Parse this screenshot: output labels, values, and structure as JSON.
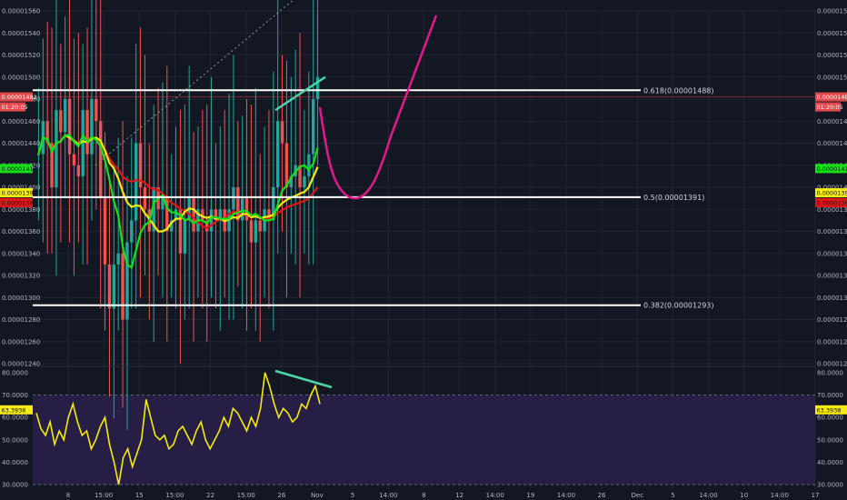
{
  "colors": {
    "background": "#131722",
    "grid": "#1f2433",
    "candle_up": "#26a69a",
    "candle_down": "#ef5350",
    "ma_green": "#16e016",
    "ma_yellow": "#f5ea12",
    "ma_red": "#e01515",
    "trendline": "#4dd6a8",
    "projection": "#e0198c",
    "fib_line": "#ffffff",
    "rsi_line": "#f5ea12",
    "rsi_band": "#2a1f4a",
    "price_badge": "#e0484b",
    "green_badge": "#16e016",
    "yellow_badge": "#f5ea12",
    "red_badge": "#e01515"
  },
  "chart_data": [
    {
      "type": "candlestick",
      "name": "price-pane",
      "y_axis": {
        "min": 1.24e-05,
        "max": 1.56e-05,
        "ticks": [
          "0.00001560",
          "0.00001540",
          "0.00001520",
          "0.00001500",
          "0.00001480",
          "0.00001460",
          "0.00001440",
          "0.00001420",
          "0.00001400",
          "0.00001380",
          "0.00001360",
          "0.00001340",
          "0.00001320",
          "0.00001300",
          "0.00001280",
          "0.00001260",
          "0.00001240"
        ]
      },
      "x_ticks": [
        "8",
        "15:00",
        "15",
        "15:00",
        "22",
        "15:00",
        "26",
        "Nov",
        "5",
        "14:00",
        "8",
        "12",
        "14:00",
        "19",
        "14:00",
        "26",
        "Dec",
        "5",
        "14:00",
        "10",
        "14:00",
        "17"
      ],
      "candles_close_profile": [
        1.43e-05,
        1.46e-05,
        1.44e-05,
        1.4e-05,
        1.47e-05,
        1.45e-05,
        1.48e-05,
        1.43e-05,
        1.42e-05,
        1.41e-05,
        1.47e-05,
        1.43e-05,
        1.48e-05,
        1.46e-05,
        1.39e-05,
        1.33e-05,
        1.29e-05,
        1.33e-05,
        1.34e-05,
        1.28e-05,
        1.35e-05,
        1.37e-05,
        1.44e-05,
        1.4e-05,
        1.38e-05,
        1.36e-05,
        1.4e-05,
        1.38e-05,
        1.39e-05,
        1.36e-05,
        1.37e-05,
        1.38e-05,
        1.34e-05,
        1.37e-05,
        1.39e-05,
        1.36e-05,
        1.38e-05,
        1.37e-05,
        1.36e-05,
        1.38e-05,
        1.37e-05,
        1.38e-05,
        1.36e-05,
        1.38e-05,
        1.4e-05,
        1.37e-05,
        1.39e-05,
        1.37e-05,
        1.35e-05,
        1.37e-05,
        1.36e-05,
        1.38e-05,
        1.37e-05,
        1.4e-05,
        1.46e-05,
        1.44e-05,
        1.4e-05,
        1.41e-05,
        1.42e-05,
        1.4e-05,
        1.41e-05,
        1.43e-05,
        1.48e-05,
        1.5e-05
      ],
      "fib_levels": [
        {
          "label": "0.618(0.00001488)",
          "value": 1.488e-05
        },
        {
          "label": "0.5(0.00001391)",
          "value": 1.391e-05
        },
        {
          "label": "0.382(0.00001293)",
          "value": 1.293e-05
        }
      ],
      "current_price_badge": "0.00001482",
      "countdown_badge": "01:20:05",
      "ma_badges": {
        "green": "0.00001417",
        "yellow": "0.00001395",
        "red": "0.00001386"
      }
    },
    {
      "type": "line",
      "name": "rsi-pane",
      "y_axis": {
        "min": 28,
        "max": 82,
        "ticks": [
          "80.0000",
          "70.0000",
          "60.0000",
          "50.0000",
          "40.0000",
          "30.0000"
        ],
        "band": [
          30,
          70
        ]
      },
      "rsi_values": [
        62,
        55,
        52,
        58,
        48,
        54,
        50,
        60,
        66,
        58,
        52,
        54,
        46,
        50,
        56,
        60,
        48,
        40,
        30,
        42,
        46,
        38,
        44,
        50,
        68,
        60,
        52,
        50,
        52,
        46,
        48,
        54,
        56,
        52,
        48,
        54,
        58,
        50,
        46,
        50,
        54,
        60,
        56,
        64,
        62,
        58,
        54,
        60,
        56,
        64,
        80,
        74,
        66,
        60,
        64,
        62,
        58,
        60,
        66,
        64,
        70,
        74,
        66
      ],
      "value_badge": "63.3938"
    }
  ]
}
